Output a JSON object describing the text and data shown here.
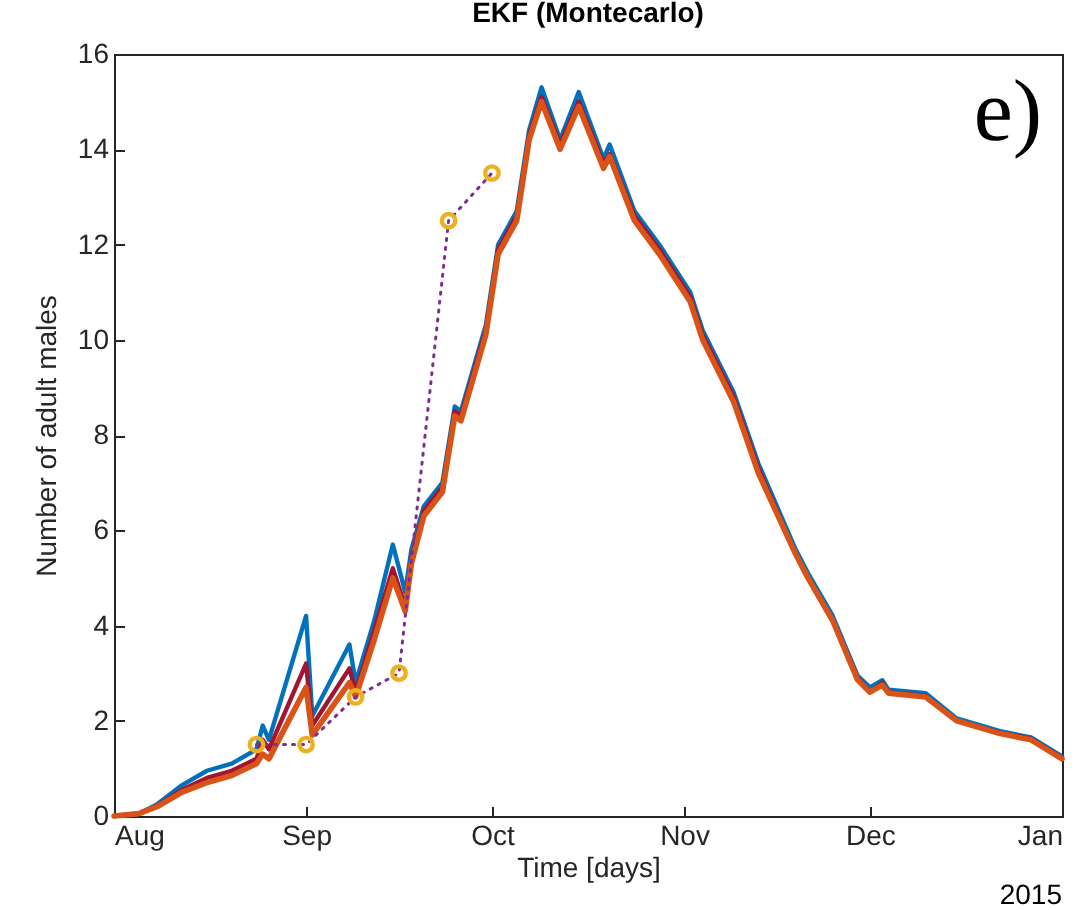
{
  "chart_data": {
    "type": "line",
    "title": "EKF (Montecarlo)",
    "xlabel": "Time [days]",
    "ylabel": "Number of adult males",
    "annotations": [
      "e)",
      "2015"
    ],
    "x": [
      "2014-08-01",
      "2014-08-05",
      "2014-08-08",
      "2014-08-12",
      "2014-08-16",
      "2014-08-20",
      "2014-08-24",
      "2014-08-25",
      "2014-08-26",
      "2014-09-01",
      "2014-09-02",
      "2014-09-08",
      "2014-09-09",
      "2014-09-12",
      "2014-09-15",
      "2014-09-17",
      "2014-09-18",
      "2014-09-20",
      "2014-09-23",
      "2014-09-25",
      "2014-09-26",
      "2014-09-30",
      "2014-10-02",
      "2014-10-05",
      "2014-10-07",
      "2014-10-09",
      "2014-10-12",
      "2014-10-15",
      "2014-10-19",
      "2014-10-20",
      "2014-10-24",
      "2014-10-28",
      "2014-11-02",
      "2014-11-04",
      "2014-11-09",
      "2014-11-13",
      "2014-11-19",
      "2014-11-21",
      "2014-11-25",
      "2014-11-29",
      "2014-12-01",
      "2014-12-03",
      "2014-12-04",
      "2014-12-10",
      "2014-12-15",
      "2014-12-22",
      "2014-12-27",
      "2015-01-01"
    ],
    "series": [
      {
        "color": "#0072bd",
        "values": [
          0,
          0.05,
          0.25,
          0.65,
          0.95,
          1.1,
          1.4,
          1.9,
          1.6,
          4.2,
          2.1,
          3.6,
          2.8,
          4.1,
          5.7,
          4.7,
          5.6,
          6.5,
          7.0,
          8.6,
          8.5,
          10.3,
          12.0,
          12.7,
          14.4,
          15.3,
          14.2,
          15.2,
          13.8,
          14.1,
          12.7,
          12.0,
          11.0,
          10.2,
          8.9,
          7.4,
          5.6,
          5.1,
          4.2,
          2.95,
          2.7,
          2.85,
          2.65,
          2.58,
          2.05,
          1.78,
          1.65,
          1.25
        ]
      },
      {
        "color": "#a2142f",
        "values": [
          0,
          0.05,
          0.22,
          0.55,
          0.8,
          0.95,
          1.2,
          1.6,
          1.4,
          3.2,
          1.9,
          3.1,
          2.6,
          3.9,
          5.2,
          4.4,
          5.4,
          6.4,
          6.9,
          8.5,
          8.4,
          10.2,
          11.9,
          12.6,
          14.3,
          15.1,
          14.1,
          15.0,
          13.7,
          13.9,
          12.6,
          11.9,
          10.9,
          10.1,
          8.8,
          7.3,
          5.5,
          5.0,
          4.1,
          2.9,
          2.6,
          2.8,
          2.6,
          2.52,
          2.0,
          1.75,
          1.62,
          1.22
        ]
      },
      {
        "color": "#d95319",
        "values": [
          0,
          0.05,
          0.2,
          0.5,
          0.7,
          0.85,
          1.1,
          1.3,
          1.2,
          2.7,
          1.7,
          2.8,
          2.5,
          3.7,
          5.0,
          4.3,
          5.3,
          6.3,
          6.8,
          8.4,
          8.3,
          10.1,
          11.8,
          12.5,
          14.2,
          15.0,
          14.0,
          14.9,
          13.6,
          13.85,
          12.5,
          11.8,
          10.8,
          10.0,
          8.7,
          7.2,
          5.5,
          5.0,
          4.1,
          2.86,
          2.6,
          2.75,
          2.58,
          2.5,
          2.0,
          1.73,
          1.6,
          1.2
        ]
      },
      {
        "type": "line",
        "line_style": "dotted",
        "color": "#7e2f8e",
        "x": [
          "2014-08-24",
          "2014-09-01",
          "2014-09-09",
          "2014-09-16",
          "2014-09-24",
          "2014-10-01"
        ],
        "values": [
          1.5,
          1.5,
          2.5,
          3.0,
          12.5,
          13.5
        ]
      },
      {
        "type": "scatter",
        "marker": "circle",
        "color": "#edb120",
        "x": [
          "2014-08-24",
          "2014-09-01",
          "2014-09-09",
          "2014-09-16",
          "2014-09-24",
          "2014-10-01"
        ],
        "values": [
          1.5,
          1.5,
          2.5,
          3.0,
          12.5,
          13.5
        ]
      }
    ],
    "xlim": [
      "2014-08-01",
      "2015-01-01"
    ],
    "xticks": [
      {
        "value": "2014-08-01",
        "label": "Aug"
      },
      {
        "value": "2014-09-01",
        "label": "Sep"
      },
      {
        "value": "2014-10-01",
        "label": "Oct"
      },
      {
        "value": "2014-11-01",
        "label": "Nov"
      },
      {
        "value": "2014-12-01",
        "label": "Dec"
      },
      {
        "value": "2015-01-01",
        "label": "Jan"
      }
    ],
    "ylim": [
      0,
      16
    ],
    "yticks": [
      0,
      2,
      4,
      6,
      8,
      10,
      12,
      14,
      16
    ],
    "grid": false
  }
}
